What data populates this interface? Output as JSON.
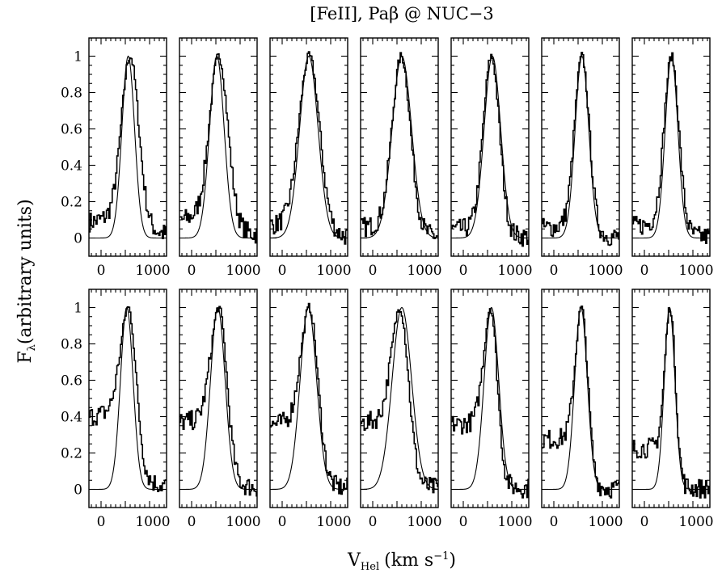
{
  "chart_data": {
    "type": "line",
    "title": "[FeII], Paβ @ NUC−3",
    "xlabel_main": "V",
    "xlabel_sub": "Hel",
    "xlabel_units": "(km s",
    "xlabel_exp": "−1",
    "xlabel_close": ")",
    "ylabel_main": "F",
    "ylabel_sub": "λ",
    "ylabel_rest": "(arbitrary units)",
    "xlim": [
      -250,
      1350
    ],
    "ylim": [
      -0.1,
      1.1
    ],
    "x_ticks": [
      0,
      1000
    ],
    "x_tick_labels": [
      "0",
      "1000"
    ],
    "y_ticks": [
      0,
      0.2,
      0.4,
      0.6,
      0.8,
      1
    ],
    "y_tick_labels": [
      "0",
      "0.2",
      "0.4",
      "0.6",
      "0.8",
      "1"
    ],
    "grid": false,
    "series_styles": [
      "histogram",
      "line"
    ],
    "rows": [
      [
        {
          "center": 560,
          "sigma": 130,
          "obs_center": 600,
          "obs_width": 175,
          "base": 0.07,
          "pedestal": 0.1
        },
        {
          "center": 520,
          "sigma": 150,
          "obs_center": 560,
          "obs_width": 185,
          "base": 0.08,
          "pedestal": 0.1
        },
        {
          "center": 550,
          "sigma": 190,
          "obs_center": 560,
          "obs_width": 210,
          "base": 0.06,
          "pedestal": 0.05
        },
        {
          "center": 600,
          "sigma": 200,
          "obs_center": 590,
          "obs_width": 185,
          "base": 0.05,
          "pedestal": 0.05
        },
        {
          "center": 600,
          "sigma": 170,
          "obs_center": 580,
          "obs_width": 165,
          "base": 0.04,
          "pedestal": 0.03
        },
        {
          "center": 580,
          "sigma": 140,
          "obs_center": 580,
          "obs_width": 150,
          "base": 0.05,
          "pedestal": 0.03
        },
        {
          "center": 560,
          "sigma": 130,
          "obs_center": 560,
          "obs_width": 150,
          "base": 0.06,
          "pedestal": 0.03
        }
      ],
      [
        {
          "center": 530,
          "sigma": 130,
          "obs_center": 560,
          "obs_width": 160,
          "base": 0.38,
          "pedestal": 0.1
        },
        {
          "center": 540,
          "sigma": 150,
          "obs_center": 560,
          "obs_width": 165,
          "base": 0.36,
          "pedestal": 0.05
        },
        {
          "center": 540,
          "sigma": 170,
          "obs_center": 560,
          "obs_width": 175,
          "base": 0.35,
          "pedestal": 0.04
        },
        {
          "center": 600,
          "sigma": 200,
          "obs_center": 560,
          "obs_width": 175,
          "base": 0.36,
          "pedestal": 0.04
        },
        {
          "center": 580,
          "sigma": 150,
          "obs_center": 560,
          "obs_width": 140,
          "base": 0.35,
          "pedestal": 0.03
        },
        {
          "center": 560,
          "sigma": 130,
          "obs_center": 570,
          "obs_width": 130,
          "base": 0.27,
          "pedestal": 0.02
        },
        {
          "center": 520,
          "sigma": 110,
          "obs_center": 530,
          "obs_width": 110,
          "base": 0.22,
          "pedestal": 0.02
        }
      ]
    ]
  }
}
